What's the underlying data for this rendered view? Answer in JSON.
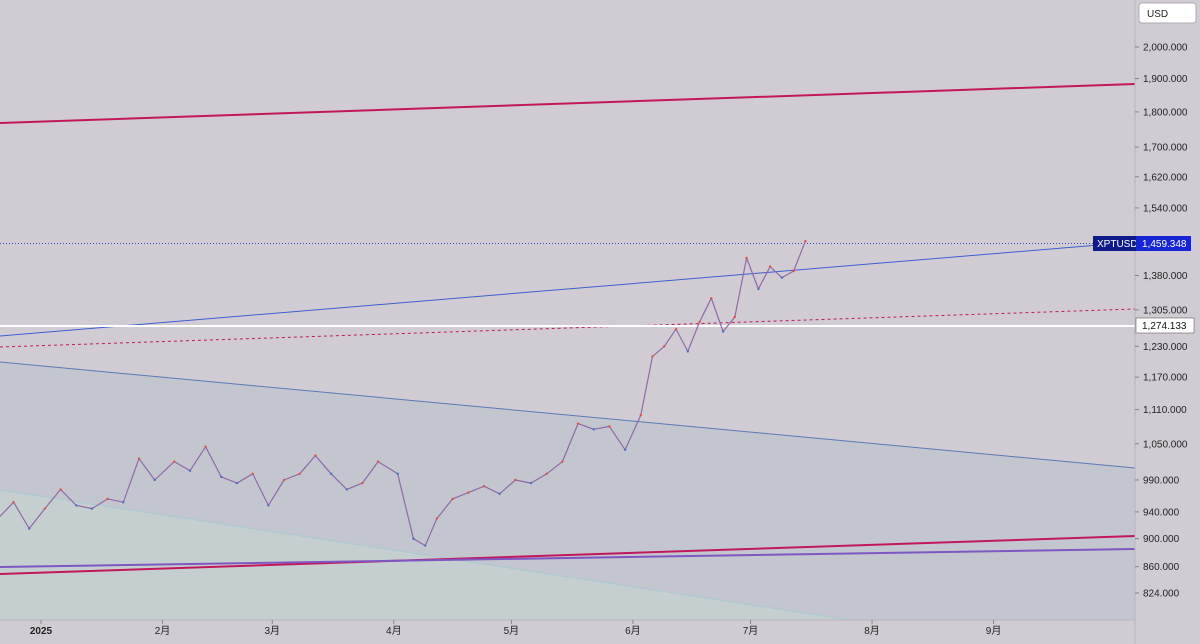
{
  "chart_data": {
    "type": "line",
    "title": "",
    "symbol": "XPTUSD",
    "currency": "USD",
    "last_price_label": "1,459.348",
    "level_line_label": "1,274.133",
    "y_axis": {
      "ticks": [
        {
          "label": "2,000.000",
          "value": 2000
        },
        {
          "label": "1,900.000",
          "value": 1900
        },
        {
          "label": "1,800.000",
          "value": 1800
        },
        {
          "label": "1,700.000",
          "value": 1700
        },
        {
          "label": "1,620.000",
          "value": 1620
        },
        {
          "label": "1,540.000",
          "value": 1540
        },
        {
          "label": "1,380.000",
          "value": 1380
        },
        {
          "label": "1,305.000",
          "value": 1305
        },
        {
          "label": "1,230.000",
          "value": 1230
        },
        {
          "label": "1,170.000",
          "value": 1170
        },
        {
          "label": "1,110.000",
          "value": 1110
        },
        {
          "label": "1,050.000",
          "value": 1050
        },
        {
          "label": "990.000",
          "value": 990
        },
        {
          "label": "940.000",
          "value": 940
        },
        {
          "label": "900.000",
          "value": 900
        },
        {
          "label": "860.000",
          "value": 860
        },
        {
          "label": "824.000",
          "value": 824
        }
      ],
      "scale": "log"
    },
    "x_axis": {
      "ticks": [
        {
          "label": "2025",
          "date": "2025-01-01",
          "bold": true
        },
        {
          "label": "2月",
          "date": "2025-02-01"
        },
        {
          "label": "3月",
          "date": "2025-03-01"
        },
        {
          "label": "4月",
          "date": "2025-04-01"
        },
        {
          "label": "5月",
          "date": "2025-05-01"
        },
        {
          "label": "6月",
          "date": "2025-06-01"
        },
        {
          "label": "7月",
          "date": "2025-07-01"
        },
        {
          "label": "8月",
          "date": "2025-08-01"
        },
        {
          "label": "9月",
          "date": "2025-09-01"
        }
      ]
    },
    "series": [
      {
        "x": [
          "2024-12-21",
          "2024-12-25",
          "2024-12-29",
          "2025-01-02",
          "2025-01-06",
          "2025-01-10",
          "2025-01-14",
          "2025-01-18",
          "2025-01-22",
          "2025-01-26",
          "2025-01-30",
          "2025-02-04",
          "2025-02-08",
          "2025-02-12",
          "2025-02-16",
          "2025-02-20",
          "2025-02-24",
          "2025-02-28",
          "2025-03-04",
          "2025-03-08",
          "2025-03-12",
          "2025-03-16",
          "2025-03-20",
          "2025-03-24",
          "2025-03-28",
          "2025-04-02",
          "2025-04-06",
          "2025-04-09",
          "2025-04-12",
          "2025-04-16",
          "2025-04-20",
          "2025-04-24",
          "2025-04-28",
          "2025-05-02",
          "2025-05-06",
          "2025-05-10",
          "2025-05-14",
          "2025-05-18",
          "2025-05-22",
          "2025-05-26",
          "2025-05-30",
          "2025-06-03",
          "2025-06-06",
          "2025-06-09",
          "2025-06-12",
          "2025-06-15",
          "2025-06-18",
          "2025-06-21",
          "2025-06-24",
          "2025-06-27",
          "2025-06-30",
          "2025-07-03",
          "2025-07-06",
          "2025-07-09",
          "2025-07-12",
          "2025-07-15"
        ],
        "values": [
          930,
          955,
          915,
          945,
          975,
          950,
          945,
          960,
          955,
          1025,
          990,
          1020,
          1005,
          1045,
          995,
          985,
          1000,
          950,
          990,
          1000,
          1030,
          1000,
          975,
          985,
          1020,
          1000,
          900,
          890,
          930,
          960,
          970,
          980,
          968,
          990,
          985,
          1000,
          1020,
          1085,
          1075,
          1080,
          1040,
          1100,
          1210,
          1230,
          1265,
          1220,
          1280,
          1330,
          1260,
          1290,
          1420,
          1350,
          1400,
          1375,
          1390,
          1459
        ]
      }
    ]
  }
}
